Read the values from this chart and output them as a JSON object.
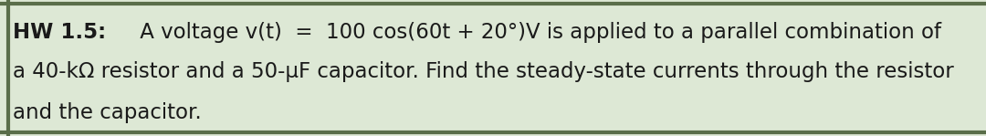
{
  "background_color": "#dde8d5",
  "border_color": "#5a6e4a",
  "border_linewidth": 3.0,
  "text_color": "#1a1a1a",
  "font_size": 16.5,
  "line1_bold": "HW 1.5:",
  "line1_normal": " A voltage v(t)  =  100 cos(60t + 20°)V is applied to a parallel combination of",
  "line2": "a 40-kΩ resistor and a 50-μF capacitor. Find the steady-state currents through the resistor",
  "line3": "and the capacitor.",
  "fig_width": 10.8,
  "fig_height": 1.49,
  "dpi": 100
}
